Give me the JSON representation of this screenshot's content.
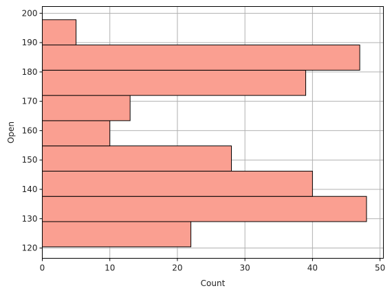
{
  "chart_data": {
    "type": "bar",
    "orientation": "horizontal",
    "kind": "histogram",
    "xlabel": "Count",
    "ylabel": "Open",
    "xlim": [
      0,
      50.5
    ],
    "ylim": [
      116.5,
      202.3
    ],
    "x_ticks": [
      0,
      10,
      20,
      30,
      40,
      50
    ],
    "y_ticks": [
      120,
      130,
      140,
      150,
      160,
      170,
      180,
      190,
      200
    ],
    "grid": true,
    "bar_color": "#fa9f91",
    "edge_color": "#000000",
    "bins": [
      {
        "low": 120.4,
        "high": 129.0,
        "count": 22
      },
      {
        "low": 129.0,
        "high": 137.6,
        "count": 48
      },
      {
        "low": 137.6,
        "high": 146.2,
        "count": 40
      },
      {
        "low": 146.2,
        "high": 154.8,
        "count": 28
      },
      {
        "low": 154.8,
        "high": 163.4,
        "count": 10
      },
      {
        "low": 163.4,
        "high": 172.0,
        "count": 13
      },
      {
        "low": 172.0,
        "high": 180.6,
        "count": 39
      },
      {
        "low": 180.6,
        "high": 189.2,
        "count": 47
      },
      {
        "low": 189.2,
        "high": 197.8,
        "count": 5
      }
    ]
  }
}
